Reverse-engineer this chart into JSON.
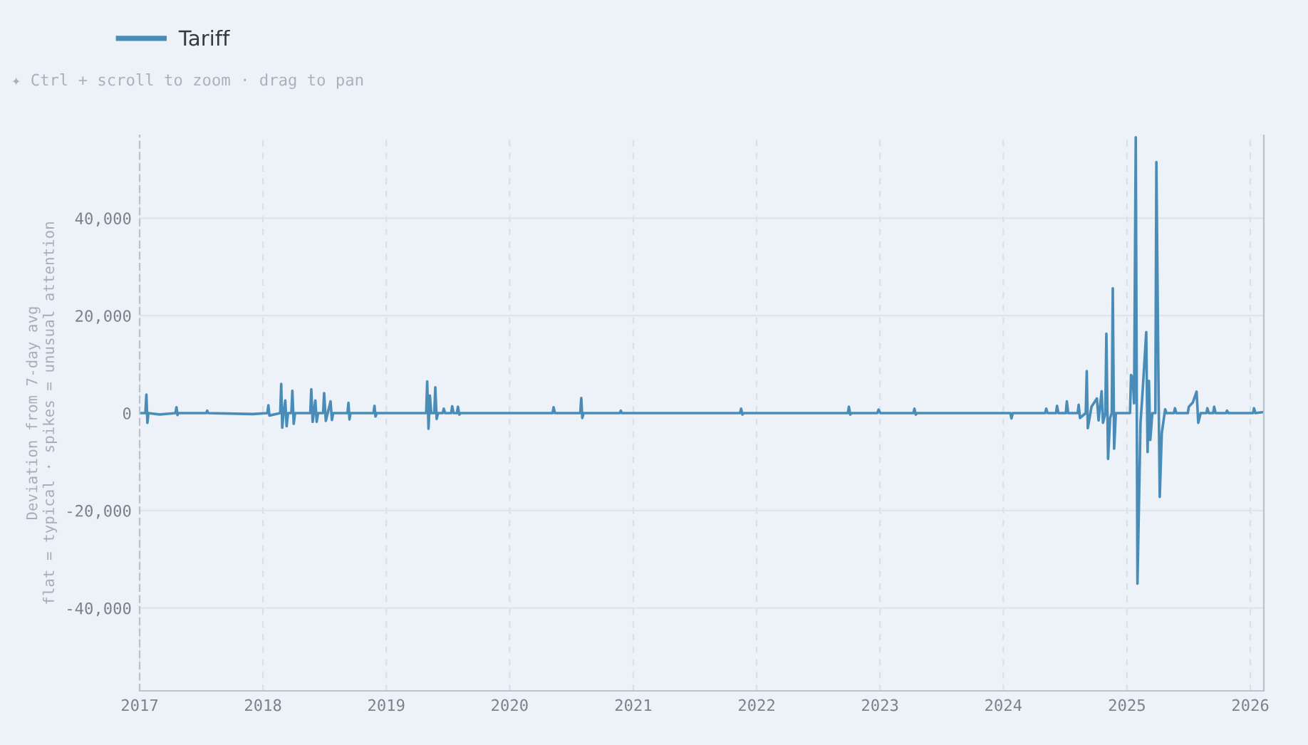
{
  "chart_data": {
    "type": "line",
    "ylabel": "Deviation from 7-day avg\nflat = typical · spikes = unusual attention",
    "annotations": [
      "✦ Ctrl + scroll to zoom · drag to pan"
    ],
    "xlim": [
      "2017-01-01",
      "2026-02-10"
    ],
    "xticks": [
      {
        "value": "2017-01-01",
        "label": "2017"
      },
      {
        "value": "2018-01-01",
        "label": "2018"
      },
      {
        "value": "2019-01-01",
        "label": "2019"
      },
      {
        "value": "2020-01-01",
        "label": "2020"
      },
      {
        "value": "2021-01-01",
        "label": "2021"
      },
      {
        "value": "2022-01-01",
        "label": "2022"
      },
      {
        "value": "2023-01-01",
        "label": "2023"
      },
      {
        "value": "2024-01-01",
        "label": "2024"
      },
      {
        "value": "2025-01-01",
        "label": "2025"
      },
      {
        "value": "2026-01-01",
        "label": "2026"
      }
    ],
    "ylim": [
      -57000,
      57000
    ],
    "yticks": [
      {
        "value": -40000,
        "label": "-40,000"
      },
      {
        "value": -20000,
        "label": "-20,000"
      },
      0,
      {
        "value": 20000,
        "label": "20,000"
      },
      {
        "value": 40000,
        "label": "40,000"
      }
    ],
    "grid": true,
    "legend": "top left",
    "series": [
      {
        "name": "Tariff",
        "color": "#4a8cb8",
        "x": [
          "2017-01-01",
          "2017-01-18",
          "2017-01-21",
          "2017-01-24",
          "2017-01-27",
          "2017-03-01",
          "2017-04-17",
          "2017-04-20",
          "2017-04-23",
          "2017-04-26",
          "2017-07-17",
          "2017-07-20",
          "2017-07-23",
          "2017-12-01",
          "2018-01-14",
          "2018-01-17",
          "2018-01-20",
          "2018-02-21",
          "2018-02-24",
          "2018-02-27",
          "2018-03-03",
          "2018-03-08",
          "2018-03-12",
          "2018-03-16",
          "2018-03-26",
          "2018-03-29",
          "2018-04-02",
          "2018-04-06",
          "2018-05-21",
          "2018-05-24",
          "2018-05-28",
          "2018-06-05",
          "2018-06-09",
          "2018-06-13",
          "2018-06-28",
          "2018-07-01",
          "2018-07-06",
          "2018-07-20",
          "2018-07-24",
          "2018-07-28",
          "2018-09-08",
          "2018-09-11",
          "2018-09-14",
          "2018-09-17",
          "2018-11-24",
          "2018-11-27",
          "2018-11-30",
          "2018-12-04",
          "2019-04-29",
          "2019-05-02",
          "2019-05-06",
          "2019-05-10",
          "2019-05-14",
          "2019-05-23",
          "2019-05-26",
          "2019-05-30",
          "2019-06-03",
          "2019-06-17",
          "2019-06-20",
          "2019-06-24",
          "2019-07-12",
          "2019-07-15",
          "2019-07-19",
          "2019-07-29",
          "2019-08-01",
          "2019-08-05",
          "2019-08-09",
          "2020-05-07",
          "2020-05-10",
          "2020-05-14",
          "2020-07-28",
          "2020-07-31",
          "2020-08-03",
          "2020-08-07",
          "2020-11-22",
          "2020-11-25",
          "2020-11-28",
          "2021-11-13",
          "2021-11-16",
          "2021-11-20",
          "2021-11-24",
          "2022-09-28",
          "2022-10-01",
          "2022-10-05",
          "2022-10-09",
          "2022-12-24",
          "2022-12-28",
          "2023-01-02",
          "2023-04-10",
          "2023-04-13",
          "2023-04-17",
          "2023-04-21",
          "2024-01-22",
          "2024-01-25",
          "2024-01-29",
          "2024-05-04",
          "2024-05-07",
          "2024-05-11",
          "2024-06-05",
          "2024-06-08",
          "2024-06-12",
          "2024-07-04",
          "2024-07-07",
          "2024-07-11",
          "2024-08-08",
          "2024-08-11",
          "2024-08-15",
          "2024-09-01",
          "2024-09-04",
          "2024-09-07",
          "2024-09-18",
          "2024-10-04",
          "2024-10-09",
          "2024-10-18",
          "2024-10-22",
          "2024-10-29",
          "2024-11-01",
          "2024-11-06",
          "2024-11-12",
          "2024-11-17",
          "2024-11-20",
          "2024-11-24",
          "2024-11-29",
          "2025-01-10",
          "2025-01-13",
          "2025-01-18",
          "2025-01-22",
          "2025-01-27",
          "2025-02-01",
          "2025-02-10",
          "2025-02-15",
          "2025-02-27",
          "2025-03-03",
          "2025-03-07",
          "2025-03-11",
          "2025-03-17",
          "2025-03-26",
          "2025-03-29",
          "2025-04-04",
          "2025-04-08",
          "2025-04-14",
          "2025-04-24",
          "2025-04-28",
          "2025-05-20",
          "2025-05-23",
          "2025-05-27",
          "2025-06-30",
          "2025-07-03",
          "2025-07-15",
          "2025-07-26",
          "2025-07-31",
          "2025-08-07",
          "2025-08-24",
          "2025-08-27",
          "2025-08-31",
          "2025-09-13",
          "2025-09-16",
          "2025-09-20",
          "2025-10-21",
          "2025-10-24",
          "2025-10-28",
          "2026-01-09",
          "2026-01-12",
          "2026-01-16",
          "2026-02-08"
        ],
        "values": [
          0,
          0,
          3800,
          -2000,
          0,
          -300,
          0,
          1200,
          -400,
          0,
          0,
          500,
          0,
          -200,
          0,
          1600,
          -500,
          0,
          6000,
          -3000,
          0,
          2600,
          -2700,
          0,
          0,
          4600,
          -2200,
          0,
          0,
          4900,
          -1800,
          2600,
          -1800,
          0,
          0,
          4100,
          -1600,
          2400,
          -1400,
          0,
          0,
          2100,
          -1300,
          0,
          0,
          1500,
          -700,
          0,
          0,
          6500,
          -3200,
          3600,
          0,
          0,
          5300,
          -1200,
          0,
          0,
          900,
          0,
          0,
          1400,
          0,
          0,
          1300,
          -300,
          0,
          0,
          1200,
          0,
          0,
          3100,
          -1000,
          0,
          0,
          500,
          0,
          0,
          900,
          -300,
          0,
          0,
          1300,
          -300,
          0,
          0,
          700,
          0,
          0,
          900,
          -300,
          0,
          0,
          -1100,
          0,
          0,
          900,
          0,
          0,
          1500,
          0,
          0,
          2400,
          0,
          0,
          1700,
          -1000,
          0,
          8600,
          -3100,
          1300,
          3000,
          -1500,
          4500,
          -2000,
          0,
          16300,
          -9400,
          -1000,
          0,
          25600,
          -7300,
          0,
          0,
          7800,
          7100,
          2000,
          56600,
          -35000,
          -2000,
          3000,
          16600,
          -8000,
          6600,
          -5500,
          0,
          0,
          51500,
          7600,
          -17200,
          -4100,
          800,
          0,
          0,
          1000,
          0,
          0,
          1300,
          2200,
          4400,
          -2000,
          0,
          0,
          1000,
          0,
          0,
          1300,
          0,
          0,
          500,
          0,
          0,
          1000,
          0,
          200
        ]
      }
    ]
  }
}
